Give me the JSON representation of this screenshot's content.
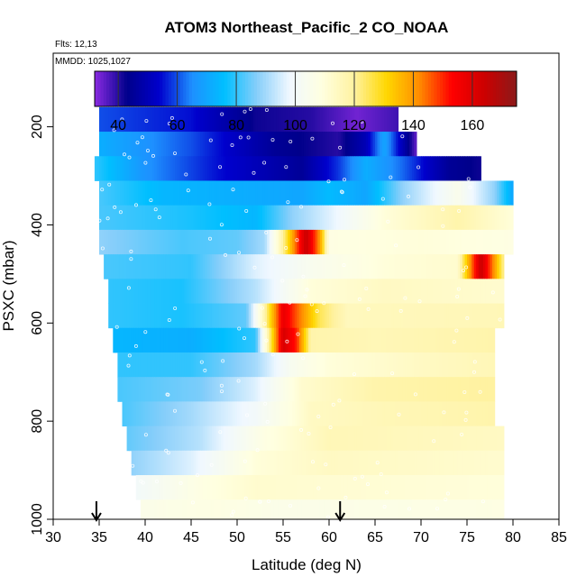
{
  "chart_data": {
    "type": "heatmap",
    "title": "ATOM3 Northeast_Pacific_2 CO_NOAA",
    "subtitle_lines": [
      "Flts: 12,13",
      "MMDD: 1025,1027"
    ],
    "xlabel": "Latitude (deg N)",
    "ylabel": "PSXC (mbar)",
    "xlim": [
      30,
      85
    ],
    "ylim": [
      1000,
      50
    ],
    "x_ticks": [
      "30",
      "35",
      "40",
      "45",
      "50",
      "55",
      "60",
      "65",
      "70",
      "75",
      "80",
      "85"
    ],
    "y_ticks": [
      "200",
      "400",
      "600",
      "800",
      "1000"
    ],
    "colorbar": {
      "range": [
        32,
        175
      ],
      "ticks": [
        "40",
        "60",
        "80",
        "100",
        "120",
        "140",
        "160"
      ],
      "placement": "top-inside"
    },
    "colors": {
      "palette": [
        "#8a2be2",
        "#00008b",
        "#0000cd",
        "#1e90ff",
        "#00bfff",
        "#87cefa",
        "#f0f8ff",
        "#ffffe0",
        "#fff2a0",
        "#ffd700",
        "#ff8c00",
        "#ff0000",
        "#cd0000",
        "#8b1a1a"
      ]
    },
    "flight_track_latitudes": [
      34.7,
      61.2
    ],
    "bands": [
      {
        "p_top": 160,
        "p_bot": 210,
        "lat_start": 35,
        "lat_end": 67.5,
        "segments": [
          [
            35,
            60
          ],
          [
            45,
            55
          ],
          [
            52,
            42
          ],
          [
            58,
            40
          ],
          [
            63,
            34
          ],
          [
            67.5,
            38
          ]
        ]
      },
      {
        "p_top": 210,
        "p_bot": 260,
        "lat_start": 35,
        "lat_end": 69.5,
        "segments": [
          [
            35,
            72
          ],
          [
            45,
            60
          ],
          [
            54,
            45
          ],
          [
            61,
            40
          ],
          [
            64,
            50
          ],
          [
            66,
            70
          ],
          [
            69.5,
            35
          ]
        ]
      },
      {
        "p_top": 260,
        "p_bot": 310,
        "lat_start": 34.5,
        "lat_end": 76.5,
        "segments": [
          [
            34.5,
            80
          ],
          [
            40,
            66
          ],
          [
            48,
            55
          ],
          [
            57,
            45
          ],
          [
            61,
            58
          ],
          [
            64,
            72
          ],
          [
            68,
            62
          ],
          [
            73,
            45
          ],
          [
            76.5,
            42
          ]
        ]
      },
      {
        "p_top": 310,
        "p_bot": 360,
        "lat_start": 35,
        "lat_end": 80,
        "segments": [
          [
            35,
            82
          ],
          [
            42,
            74
          ],
          [
            50,
            72
          ],
          [
            57,
            70
          ],
          [
            60,
            75
          ],
          [
            64,
            70
          ],
          [
            68,
            88
          ],
          [
            74,
            105
          ],
          [
            78,
            88
          ],
          [
            80,
            70
          ]
        ]
      },
      {
        "p_top": 360,
        "p_bot": 410,
        "lat_start": 35,
        "lat_end": 80,
        "segments": [
          [
            35,
            82
          ],
          [
            45,
            78
          ],
          [
            52,
            74
          ],
          [
            56,
            88
          ],
          [
            60,
            96
          ],
          [
            66,
            110
          ],
          [
            74,
            118
          ],
          [
            80,
            110
          ]
        ]
      },
      {
        "p_top": 410,
        "p_bot": 460,
        "lat_start": 35,
        "lat_end": 80,
        "segments": [
          [
            35,
            88
          ],
          [
            44,
            82
          ],
          [
            50,
            84
          ],
          [
            53,
            90
          ],
          [
            55,
            120
          ],
          [
            57.5,
            165
          ],
          [
            59,
            140
          ],
          [
            60,
            108
          ],
          [
            70,
            110
          ],
          [
            80,
            108
          ]
        ]
      },
      {
        "p_top": 460,
        "p_bot": 510,
        "lat_start": 35.5,
        "lat_end": 79,
        "segments": [
          [
            35.5,
            82
          ],
          [
            45,
            80
          ],
          [
            52,
            96
          ],
          [
            58,
            104
          ],
          [
            66,
            110
          ],
          [
            74,
            112
          ],
          [
            76.5,
            165
          ],
          [
            78,
            140
          ],
          [
            79,
            120
          ]
        ]
      },
      {
        "p_top": 510,
        "p_bot": 560,
        "lat_start": 36,
        "lat_end": 79,
        "segments": [
          [
            36,
            80
          ],
          [
            44,
            78
          ],
          [
            52,
            92
          ],
          [
            58,
            110
          ],
          [
            66,
            114
          ],
          [
            79,
            112
          ]
        ]
      },
      {
        "p_top": 560,
        "p_bot": 610,
        "lat_start": 36,
        "lat_end": 79,
        "segments": [
          [
            36,
            80
          ],
          [
            44,
            78
          ],
          [
            51,
            84
          ],
          [
            53,
            118
          ],
          [
            55,
            158
          ],
          [
            57,
            142
          ],
          [
            59,
            125
          ],
          [
            62,
            115
          ],
          [
            79,
            116
          ]
        ]
      },
      {
        "p_top": 610,
        "p_bot": 660,
        "lat_start": 36.5,
        "lat_end": 78,
        "segments": [
          [
            36.5,
            74
          ],
          [
            45,
            72
          ],
          [
            52,
            80
          ],
          [
            55,
            162
          ],
          [
            56.5,
            150
          ],
          [
            58,
            118
          ],
          [
            65,
            116
          ],
          [
            78,
            118
          ]
        ]
      },
      {
        "p_top": 660,
        "p_bot": 710,
        "lat_start": 37,
        "lat_end": 78,
        "segments": [
          [
            37,
            80
          ],
          [
            45,
            80
          ],
          [
            52,
            90
          ],
          [
            56,
            104
          ],
          [
            60,
            110
          ],
          [
            70,
            114
          ],
          [
            78,
            116
          ]
        ]
      },
      {
        "p_top": 710,
        "p_bot": 760,
        "lat_start": 37,
        "lat_end": 78,
        "segments": [
          [
            37,
            82
          ],
          [
            46,
            86
          ],
          [
            52,
            96
          ],
          [
            57,
            112
          ],
          [
            65,
            118
          ],
          [
            78,
            120
          ]
        ]
      },
      {
        "p_top": 760,
        "p_bot": 810,
        "lat_start": 37.5,
        "lat_end": 78,
        "segments": [
          [
            37.5,
            82
          ],
          [
            45,
            90
          ],
          [
            52,
            100
          ],
          [
            58,
            114
          ],
          [
            66,
            116
          ],
          [
            78,
            118
          ]
        ]
      },
      {
        "p_top": 810,
        "p_bot": 860,
        "lat_start": 38,
        "lat_end": 79,
        "segments": [
          [
            38,
            84
          ],
          [
            46,
            92
          ],
          [
            53,
            108
          ],
          [
            60,
            116
          ],
          [
            79,
            114
          ]
        ]
      },
      {
        "p_top": 860,
        "p_bot": 910,
        "lat_start": 38.5,
        "lat_end": 79,
        "segments": [
          [
            38.5,
            88
          ],
          [
            45,
            96
          ],
          [
            52,
            110
          ],
          [
            60,
            114
          ],
          [
            79,
            112
          ]
        ]
      },
      {
        "p_top": 910,
        "p_bot": 960,
        "lat_start": 39,
        "lat_end": 79,
        "segments": [
          [
            39,
            100
          ],
          [
            46,
            108
          ],
          [
            52,
            112
          ],
          [
            79,
            110
          ]
        ]
      },
      {
        "p_top": 960,
        "p_bot": 1000,
        "lat_start": 39.5,
        "lat_end": 79,
        "segments": [
          [
            39.5,
            106
          ],
          [
            48,
            108
          ],
          [
            55,
            106
          ],
          [
            79,
            108
          ]
        ]
      }
    ]
  }
}
